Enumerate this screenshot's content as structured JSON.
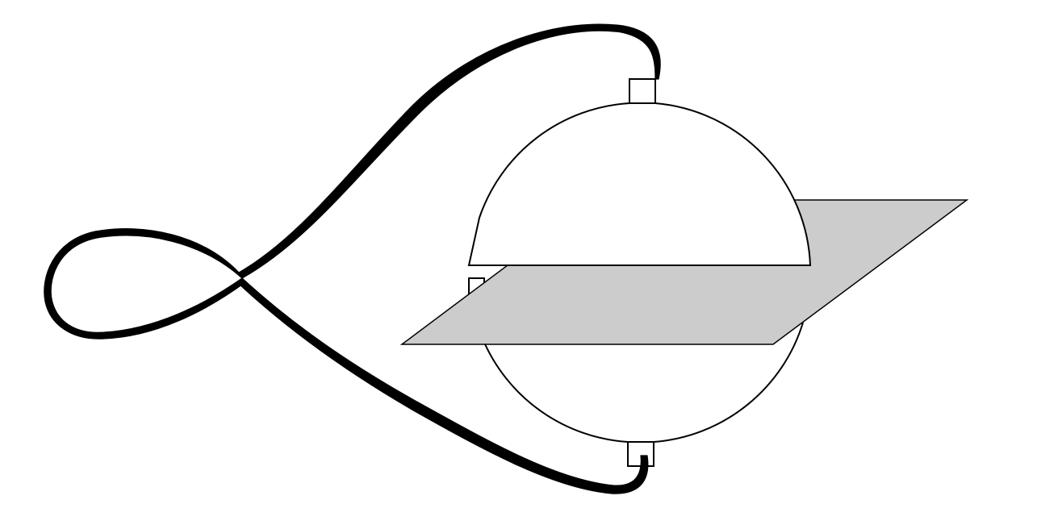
{
  "figure": {
    "colors": {
      "background": "#ffffff",
      "stroke": "#000000",
      "sphere_fill": "#ffffff",
      "plane_fill": "#cccccc",
      "ribbon_fill": "#000000"
    },
    "parts": [
      "sphere-upper-half",
      "sphere-lower-half",
      "top-connector",
      "bottom-connector",
      "cutting-plane",
      "twisted-ribbon-upper",
      "twisted-ribbon-lower"
    ]
  }
}
